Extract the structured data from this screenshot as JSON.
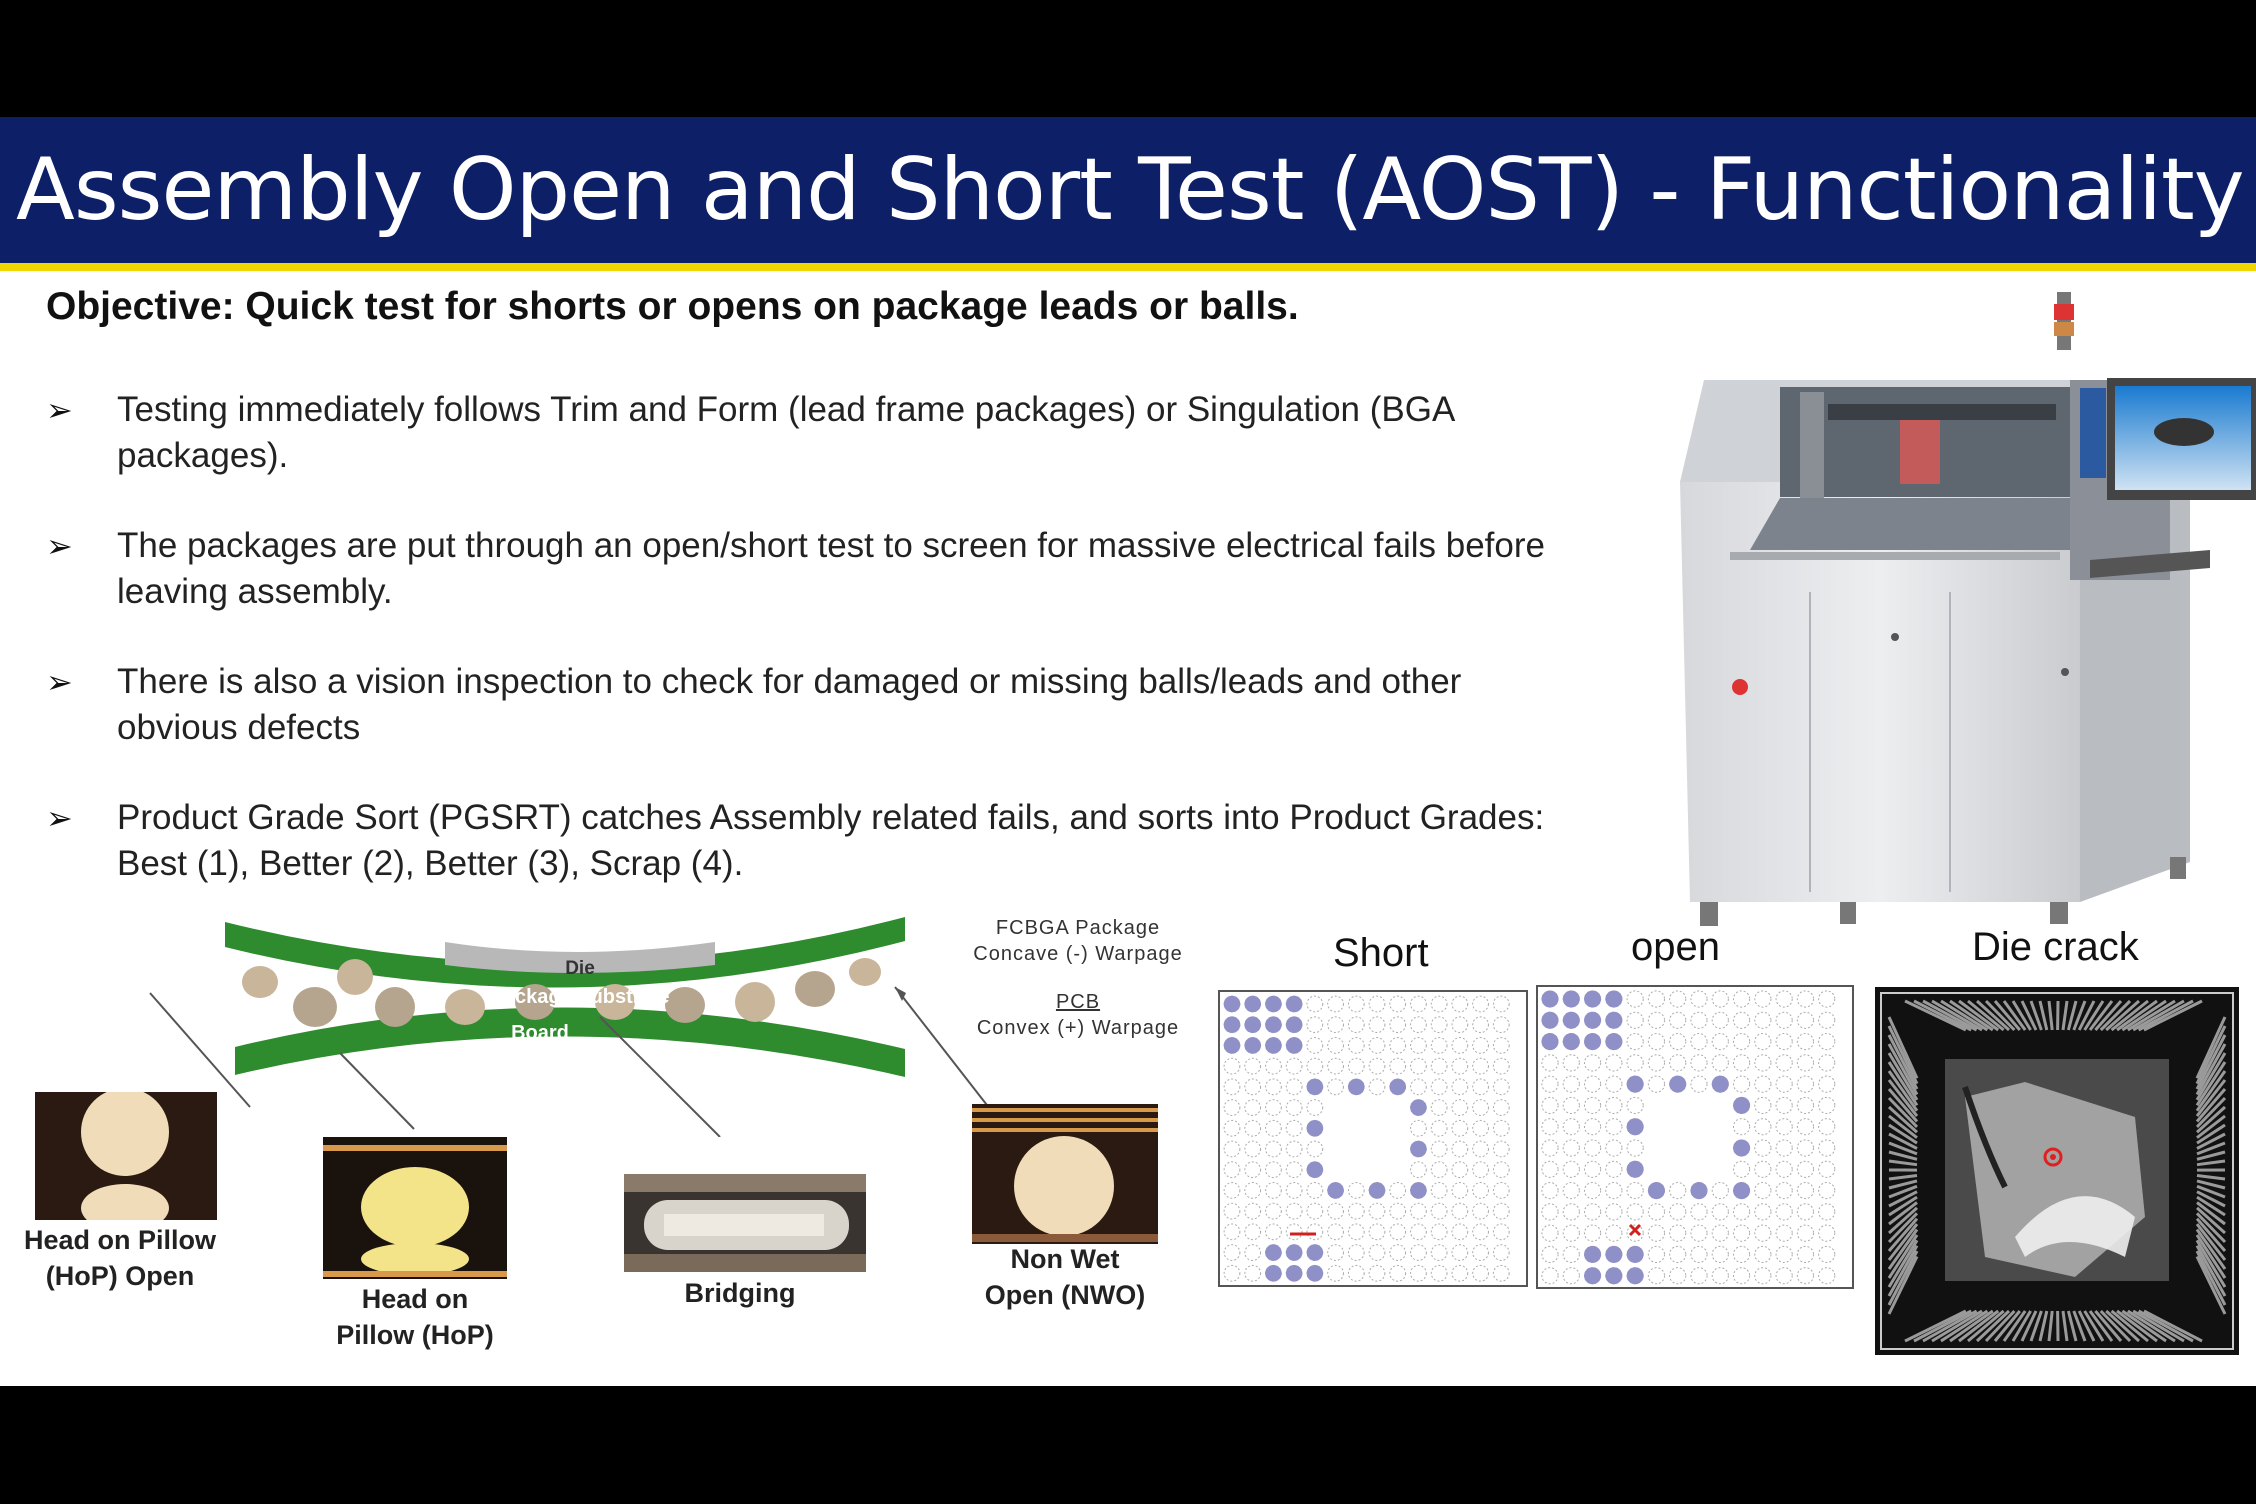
{
  "slide": {
    "title": "Assembly Open and Short Test (AOST) - Functionality",
    "objective": "Objective: Quick test for shorts or opens on package leads or balls.",
    "bullets": [
      "Testing immediately follows Trim and Form (lead frame packages) or Singulation (BGA packages).",
      "The packages are put through an open/short test to screen for massive electrical fails before leaving assembly.",
      "There is also a vision inspection to check for damaged or missing balls/leads and other obvious defects",
      "Product Grade Sort (PGSRT) catches Assembly related fails, and sorts into Product Grades: Best (1), Better (2), Better (3), Scrap (4)."
    ]
  },
  "warpage_diagram": {
    "die_label": "Die",
    "substrate_label": "Package Substrate",
    "board_label": "Board",
    "fcbga_note": [
      "FCBGA Package",
      "Concave (-) Warpage"
    ],
    "pcb_note": [
      "PCB",
      "Convex (+) Warpage"
    ],
    "photos": [
      {
        "label_lines": [
          "Head on Pillow",
          "(HoP) Open"
        ]
      },
      {
        "label_lines": [
          "Head on",
          "Pillow (HoP)"
        ]
      },
      {
        "label_lines": [
          "Bridging"
        ]
      },
      {
        "label_lines": [
          "Non Wet",
          "Open (NWO)"
        ]
      }
    ]
  },
  "defect_images": [
    {
      "label": "Short"
    },
    {
      "label": "open"
    },
    {
      "label": "Die crack"
    }
  ],
  "colors": {
    "title_bar": "#0d1f66",
    "title_rule": "#f2d600",
    "board_green": "#2e8b2e",
    "ball_marker": "#9090c8"
  }
}
